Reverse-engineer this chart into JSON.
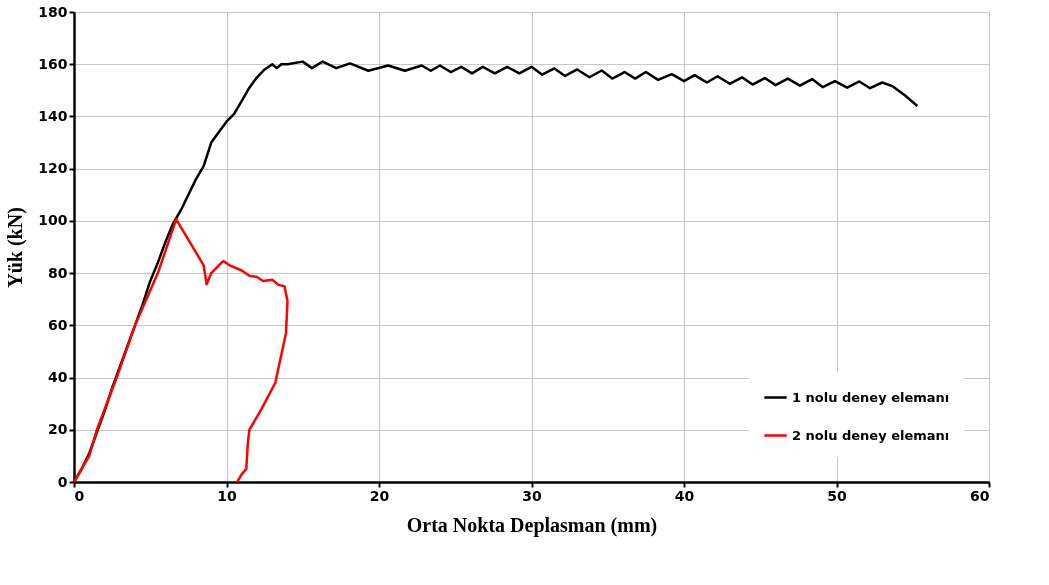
{
  "chart_data": {
    "type": "line",
    "xlabel": "Orta Nokta Deplasman (mm)",
    "ylabel": "Yük (kN)",
    "xlim": [
      0,
      60
    ],
    "xticks": [
      0,
      10,
      20,
      30,
      40,
      50,
      60
    ],
    "ylim": [
      0,
      180
    ],
    "yticks": [
      0,
      20,
      40,
      60,
      80,
      100,
      120,
      140,
      160,
      180
    ],
    "grid": true,
    "legend": "bottom right",
    "marker": "none",
    "line_style": "solid",
    "series": [
      {
        "name": "1 nolu deney elemanı",
        "color": "#000000",
        "x": [
          0,
          0.5,
          1,
          1.5,
          2,
          2.5,
          3,
          3.5,
          4,
          4.5,
          5,
          5.5,
          6,
          6.5,
          7,
          7.5,
          8,
          8.5,
          9,
          9.5,
          10,
          10.5,
          11,
          11.5,
          12,
          12.5,
          13,
          13.3,
          13.6,
          14,
          15,
          15.6,
          16.3,
          17.2,
          18.1,
          19.3,
          20.6,
          21.7,
          22.8,
          23.4,
          24.0,
          24.7,
          25.4,
          26.1,
          26.8,
          27.6,
          28.4,
          29.2,
          30.0,
          30.7,
          31.5,
          32.2,
          33.0,
          33.8,
          34.6,
          35.3,
          36.1,
          36.8,
          37.5,
          38.3,
          39.2,
          40.0,
          40.7,
          41.5,
          42.2,
          43.0,
          43.8,
          44.5,
          45.3,
          46.0,
          46.8,
          47.6,
          48.4,
          49.1,
          49.9,
          50.7,
          51.5,
          52.2,
          53.0,
          53.7,
          54.5,
          55.3
        ],
        "values": [
          0,
          5,
          11,
          19,
          27,
          36,
          44,
          52,
          60,
          68,
          77,
          84,
          92,
          99,
          104,
          110,
          116,
          121,
          130,
          134,
          138,
          141,
          146,
          151,
          155,
          158,
          160,
          158.5,
          160,
          160,
          161,
          158.5,
          161,
          158.5,
          160.3,
          157.5,
          159.5,
          157.5,
          159.5,
          157.5,
          159.5,
          157,
          159,
          156.5,
          159,
          156.5,
          159,
          156.5,
          159,
          156,
          158.4,
          155.5,
          158,
          155,
          157.6,
          154.5,
          157,
          154.5,
          157,
          154,
          156.2,
          153.5,
          155.8,
          153,
          155.4,
          152.5,
          155,
          152.2,
          154.7,
          152,
          154.5,
          151.8,
          154.3,
          151.2,
          153.5,
          151,
          153.4,
          150.8,
          153,
          151.5,
          148,
          144
        ]
      },
      {
        "name": "2 nolu deney elemanı",
        "color": "#ff0000",
        "x": [
          0,
          1,
          1.5,
          2.8,
          4,
          5.5,
          6.7,
          8.5,
          8.7,
          9.0,
          9.5,
          9.8,
          10.2,
          11,
          11.5,
          12,
          12.4,
          13,
          13.4,
          13.8,
          14.0,
          13.9,
          13.2,
          12.3,
          11.5,
          11.4,
          11.3,
          11.0,
          10.7
        ],
        "values": [
          0,
          10,
          20,
          40,
          60,
          80,
          100.6,
          83,
          75.7,
          80,
          83,
          84.6,
          83,
          81,
          79,
          78.5,
          77,
          77.5,
          75.5,
          75,
          69.3,
          57,
          38,
          28,
          20,
          15,
          5,
          3,
          0
        ]
      }
    ]
  }
}
